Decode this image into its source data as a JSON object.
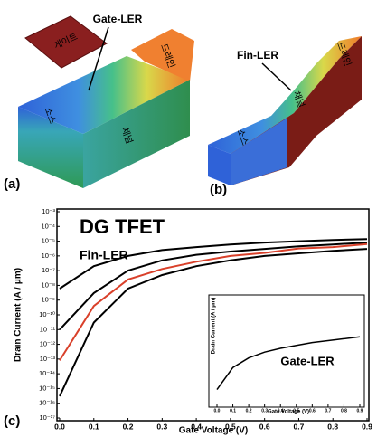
{
  "diagram": {
    "panel_a": {
      "label": "(a)",
      "gate": "게이트",
      "gate_ler": "Gate-LER",
      "source": "소스",
      "drain": "드레인",
      "channel": "채널"
    },
    "panel_b": {
      "label": "(b)",
      "fin_ler": "Fin-LER",
      "source": "소스",
      "drain": "드레인",
      "channel": "채널"
    },
    "panel_c": {
      "label": "(c)"
    }
  },
  "chart_data": [
    {
      "type": "line",
      "title": "DG TFET",
      "annotation": "Fin-LER",
      "x_label": "Gate Voltage (V)",
      "y_label": "Drain Current (A / μm)",
      "x": [
        0,
        0.1,
        0.2,
        0.3,
        0.4,
        0.5,
        0.6,
        0.7,
        0.8,
        0.9
      ],
      "log_y": true,
      "series": [
        {
          "color": "#000000",
          "values": [
            6e-09,
            2e-07,
            1e-06,
            2.5e-06,
            4e-06,
            6e-06,
            8e-06,
            1e-05,
            1.2e-05,
            1.4e-05
          ]
        },
        {
          "color": "#000000",
          "values": [
            1e-11,
            3e-09,
            1e-07,
            5e-07,
            1.2e-06,
            2e-06,
            3e-06,
            4.5e-06,
            6e-06,
            8e-06
          ]
        },
        {
          "color": "#000000",
          "values": [
            3e-16,
            3e-11,
            6e-09,
            5e-08,
            2e-07,
            5e-07,
            1e-06,
            1.5e-06,
            2.2e-06,
            3e-06
          ]
        },
        {
          "color": "#d9402a",
          "values": [
            8e-14,
            4e-10,
            2.5e-08,
            1.3e-07,
            4e-07,
            1e-06,
            1.6e-06,
            3.2e-06,
            4e-06,
            6.3e-06
          ]
        }
      ],
      "xlim": [
        0,
        0.9
      ],
      "ylim": [
        1e-17,
        0.001
      ],
      "xticks": [
        {
          "value": 0,
          "label": "0.0"
        },
        0.1,
        0.2,
        0.3,
        0.4,
        0.5,
        0.6,
        0.7,
        0.8,
        0.9
      ],
      "yticks": [
        {
          "value": 0.001,
          "label": "10⁻³"
        },
        {
          "value": 0.0001,
          "label": "10⁻⁴"
        },
        {
          "value": 1e-05,
          "label": "10⁻⁵"
        },
        {
          "value": 1e-06,
          "label": "10⁻⁶"
        },
        {
          "value": 1e-07,
          "label": "10⁻⁷"
        },
        {
          "value": 1e-08,
          "label": "10⁻⁸"
        },
        {
          "value": 1e-09,
          "label": "10⁻⁹"
        },
        {
          "value": 1e-10,
          "label": "10⁻¹⁰"
        },
        {
          "value": 1e-11,
          "label": "10⁻¹¹"
        },
        {
          "value": 1e-12,
          "label": "10⁻¹²"
        },
        {
          "value": 1e-13,
          "label": "10⁻¹³"
        },
        {
          "value": 1e-14,
          "label": "10⁻¹⁴"
        },
        {
          "value": 1e-15,
          "label": "10⁻¹⁵"
        },
        {
          "value": 1e-16,
          "label": "10⁻¹⁶"
        },
        {
          "value": 1e-17,
          "label": "10⁻¹⁷"
        }
      ]
    },
    {
      "type": "line",
      "annotation": "Gate-LER",
      "x_label": "Gate Voltage (V)",
      "y_label": "Drain Current (A / μm)",
      "x": [
        0,
        0.1,
        0.2,
        0.3,
        0.4,
        0.5,
        0.6,
        0.7,
        0.8,
        0.9
      ],
      "series": [
        {
          "color": "#000000",
          "values": [
            0.07,
            0.3,
            0.4,
            0.46,
            0.5,
            0.53,
            0.56,
            0.58,
            0.6,
            0.62
          ]
        }
      ],
      "xlim": [
        0,
        0.9
      ],
      "ylim": [
        0,
        1
      ],
      "xticks": [
        {
          "value": 0,
          "label": "0.0"
        },
        0.1,
        0.2,
        0.3,
        0.4,
        0.5,
        0.6,
        0.7,
        0.8,
        0.9
      ]
    }
  ]
}
